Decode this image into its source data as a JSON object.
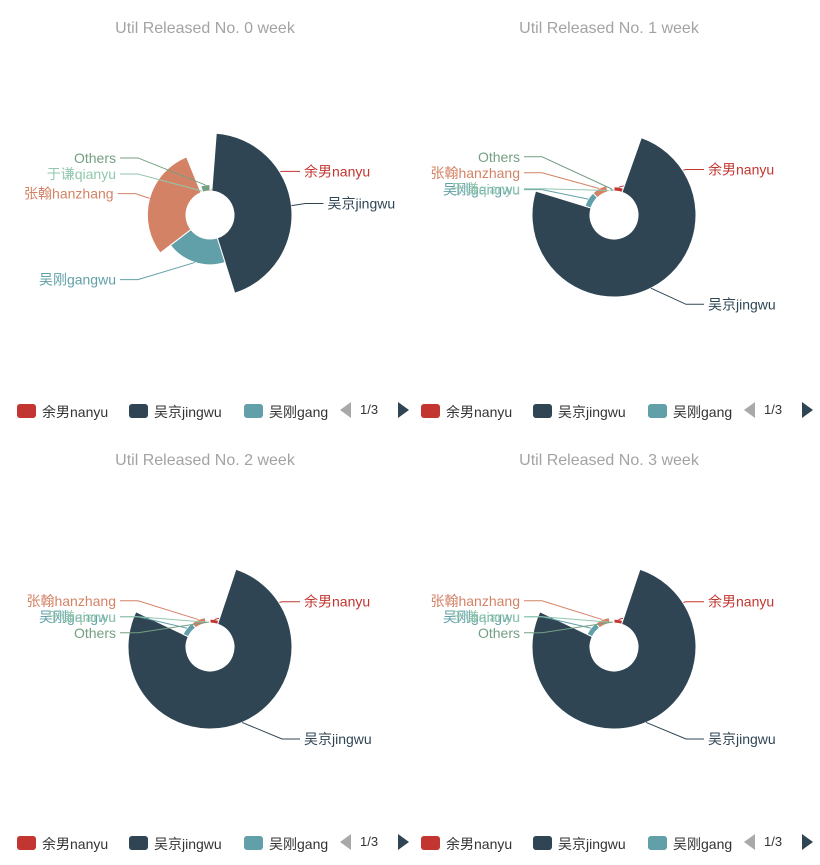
{
  "colors": {
    "nanyu": "#c23531",
    "jingwu": "#2f4554",
    "gangwu": "#61a0a8",
    "hanzhang": "#d48265",
    "qianyu": "#91c7ae",
    "others": "#749f83",
    "title": "#a3a3a3"
  },
  "legend": {
    "items": [
      "余男nanyu",
      "吴京jingwu",
      "吴刚gangwu"
    ],
    "page": "1/3"
  },
  "chart_data": [
    {
      "type": "pie",
      "title": "Util Released No. 0 week",
      "rose": "radius",
      "slices": [
        {
          "name": "余男nanyu",
          "value": 1
        },
        {
          "name": "吴京jingwu",
          "value": 36
        },
        {
          "name": "吴刚gangwu",
          "value": 16
        },
        {
          "name": "张翰hanzhang",
          "value": 24
        },
        {
          "name": "于谦qianyu",
          "value": 1
        },
        {
          "name": "Others",
          "value": 4
        }
      ]
    },
    {
      "type": "pie",
      "title": "Util Released No. 1 week",
      "rose": "radius",
      "slices": [
        {
          "name": "余男nanyu",
          "value": 4
        },
        {
          "name": "吴京jingwu",
          "value": 55
        },
        {
          "name": "吴刚gangwu",
          "value": 6
        },
        {
          "name": "张翰hanzhang",
          "value": 6
        },
        {
          "name": "于谦qianyu",
          "value": 1
        },
        {
          "name": "Others",
          "value": 2
        }
      ]
    },
    {
      "type": "pie",
      "title": "Util Released No. 2 week",
      "rose": "radius",
      "slices": [
        {
          "name": "余男nanyu",
          "value": 4
        },
        {
          "name": "吴京jingwu",
          "value": 60
        },
        {
          "name": "吴刚gangwu",
          "value": 6
        },
        {
          "name": "张翰hanzhang",
          "value": 6
        },
        {
          "name": "于谦qianyu",
          "value": 1
        },
        {
          "name": "Others",
          "value": 1
        }
      ]
    },
    {
      "type": "pie",
      "title": "Util Released No. 3 week",
      "rose": "radius",
      "slices": [
        {
          "name": "余男nanyu",
          "value": 4
        },
        {
          "name": "吴京jingwu",
          "value": 60
        },
        {
          "name": "吴刚gangwu",
          "value": 6
        },
        {
          "name": "张翰hanzhang",
          "value": 6
        },
        {
          "name": "于谦qianyu",
          "value": 1
        },
        {
          "name": "Others",
          "value": 1
        }
      ]
    }
  ]
}
